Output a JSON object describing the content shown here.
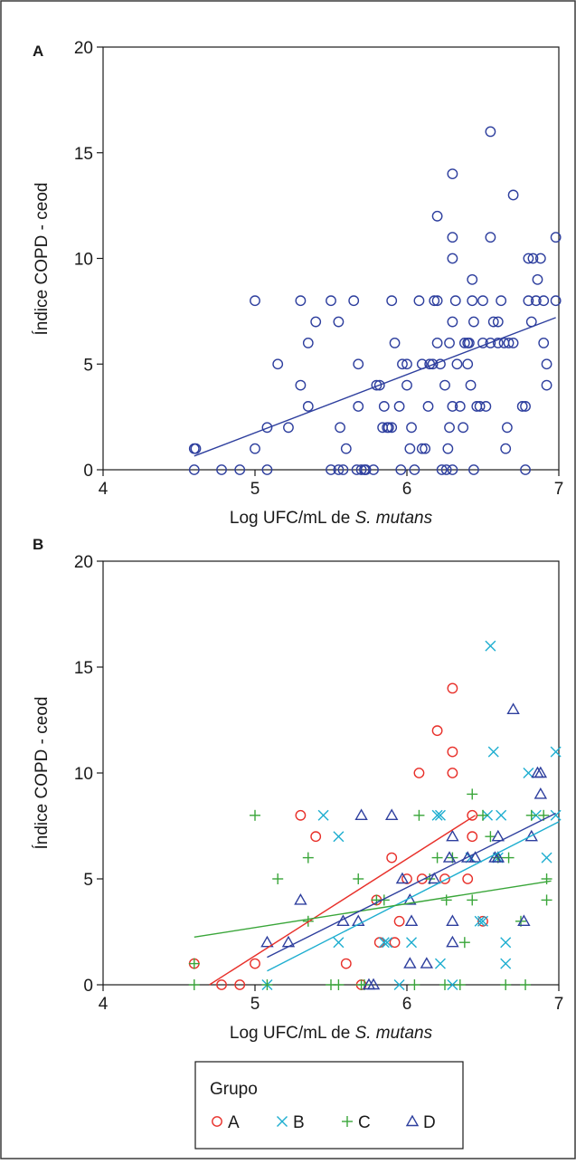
{
  "chart_data": [
    {
      "type": "scatter",
      "panel": "A",
      "xlabel": "Log UFC/mL de",
      "xlabel_italic": "S. mutans",
      "ylabel": "Índice COPD - ceod",
      "xlim": [
        4,
        7
      ],
      "ylim": [
        0,
        20
      ],
      "x_ticks": [
        4,
        5,
        6,
        7
      ],
      "y_ticks": [
        0,
        5,
        10,
        15,
        20
      ],
      "grid": false,
      "marker": "circle",
      "color": "#2e3f9e",
      "points": [
        [
          4.6,
          0
        ],
        [
          4.6,
          1
        ],
        [
          4.61,
          1
        ],
        [
          4.78,
          0
        ],
        [
          4.9,
          0
        ],
        [
          5.0,
          8
        ],
        [
          5.0,
          1
        ],
        [
          5.08,
          0
        ],
        [
          5.08,
          2
        ],
        [
          5.15,
          5
        ],
        [
          5.22,
          2
        ],
        [
          5.3,
          8
        ],
        [
          5.3,
          4
        ],
        [
          5.35,
          6
        ],
        [
          5.35,
          3
        ],
        [
          5.4,
          7
        ],
        [
          5.5,
          0
        ],
        [
          5.5,
          8
        ],
        [
          5.55,
          7
        ],
        [
          5.55,
          0
        ],
        [
          5.56,
          2
        ],
        [
          5.58,
          0
        ],
        [
          5.6,
          1
        ],
        [
          5.65,
          8
        ],
        [
          5.67,
          0
        ],
        [
          5.68,
          5
        ],
        [
          5.68,
          3
        ],
        [
          5.7,
          0
        ],
        [
          5.72,
          0
        ],
        [
          5.73,
          0
        ],
        [
          5.78,
          0
        ],
        [
          5.8,
          4
        ],
        [
          5.82,
          4
        ],
        [
          5.84,
          2
        ],
        [
          5.85,
          3
        ],
        [
          5.87,
          2
        ],
        [
          5.9,
          2
        ],
        [
          5.9,
          8
        ],
        [
          5.92,
          6
        ],
        [
          5.88,
          2
        ],
        [
          5.95,
          3
        ],
        [
          5.96,
          0
        ],
        [
          5.97,
          5
        ],
        [
          6.0,
          5
        ],
        [
          6.0,
          4
        ],
        [
          6.02,
          1
        ],
        [
          6.03,
          2
        ],
        [
          6.05,
          0
        ],
        [
          6.08,
          8
        ],
        [
          6.1,
          5
        ],
        [
          6.1,
          1
        ],
        [
          6.12,
          1
        ],
        [
          6.14,
          3
        ],
        [
          6.15,
          5
        ],
        [
          6.17,
          5
        ],
        [
          6.18,
          8
        ],
        [
          6.2,
          12
        ],
        [
          6.2,
          6
        ],
        [
          6.2,
          8
        ],
        [
          6.22,
          5
        ],
        [
          6.23,
          0
        ],
        [
          6.25,
          4
        ],
        [
          6.26,
          0
        ],
        [
          6.27,
          1
        ],
        [
          6.28,
          2
        ],
        [
          6.28,
          6
        ],
        [
          6.3,
          10
        ],
        [
          6.3,
          14
        ],
        [
          6.3,
          11
        ],
        [
          6.3,
          7
        ],
        [
          6.3,
          3
        ],
        [
          6.3,
          0
        ],
        [
          6.32,
          8
        ],
        [
          6.33,
          5
        ],
        [
          6.35,
          3
        ],
        [
          6.37,
          2
        ],
        [
          6.38,
          6
        ],
        [
          6.4,
          6
        ],
        [
          6.4,
          5
        ],
        [
          6.41,
          6
        ],
        [
          6.42,
          4
        ],
        [
          6.43,
          9
        ],
        [
          6.43,
          8
        ],
        [
          6.44,
          7
        ],
        [
          6.44,
          0
        ],
        [
          6.46,
          3
        ],
        [
          6.48,
          3
        ],
        [
          6.5,
          6
        ],
        [
          6.5,
          8
        ],
        [
          6.52,
          3
        ],
        [
          6.55,
          16
        ],
        [
          6.55,
          11
        ],
        [
          6.55,
          6
        ],
        [
          6.57,
          7
        ],
        [
          6.6,
          7
        ],
        [
          6.6,
          6
        ],
        [
          6.62,
          8
        ],
        [
          6.64,
          6
        ],
        [
          6.65,
          1
        ],
        [
          6.66,
          2
        ],
        [
          6.67,
          6
        ],
        [
          6.7,
          13
        ],
        [
          6.7,
          6
        ],
        [
          6.76,
          3
        ],
        [
          6.78,
          3
        ],
        [
          6.78,
          0
        ],
        [
          6.8,
          10
        ],
        [
          6.8,
          8
        ],
        [
          6.82,
          7
        ],
        [
          6.83,
          10
        ],
        [
          6.85,
          8
        ],
        [
          6.86,
          9
        ],
        [
          6.88,
          10
        ],
        [
          6.9,
          8
        ],
        [
          6.9,
          6
        ],
        [
          6.92,
          4
        ],
        [
          6.92,
          5
        ],
        [
          6.98,
          11
        ],
        [
          6.98,
          8
        ]
      ],
      "fit_line": {
        "x": [
          4.6,
          6.98
        ],
        "y": [
          0.65,
          7.2
        ]
      }
    },
    {
      "type": "scatter",
      "panel": "B",
      "xlabel": "Log UFC/mL de",
      "xlabel_italic": "S. mutans",
      "ylabel": "Índice COPD - ceod",
      "xlim": [
        4,
        7
      ],
      "ylim": [
        0,
        20
      ],
      "x_ticks": [
        4,
        5,
        6,
        7
      ],
      "y_ticks": [
        0,
        5,
        10,
        15,
        20
      ],
      "grid": false,
      "legend": {
        "title": "Grupo",
        "placement": "bottom"
      },
      "series": [
        {
          "name": "A",
          "marker": "circle",
          "color": "#e8302a",
          "points": [
            [
              4.6,
              1
            ],
            [
              4.78,
              0
            ],
            [
              4.9,
              0
            ],
            [
              5.0,
              1
            ],
            [
              5.3,
              8
            ],
            [
              5.4,
              7
            ],
            [
              5.6,
              1
            ],
            [
              5.7,
              0
            ],
            [
              5.8,
              4
            ],
            [
              5.82,
              2
            ],
            [
              5.9,
              6
            ],
            [
              5.95,
              3
            ],
            [
              5.92,
              2
            ],
            [
              6.0,
              5
            ],
            [
              6.08,
              10
            ],
            [
              6.1,
              5
            ],
            [
              6.2,
              12
            ],
            [
              6.25,
              5
            ],
            [
              6.3,
              14
            ],
            [
              6.3,
              11
            ],
            [
              6.3,
              10
            ],
            [
              6.4,
              5
            ],
            [
              6.43,
              8
            ],
            [
              6.43,
              7
            ],
            [
              6.5,
              3
            ]
          ],
          "fit_line": {
            "x": [
              4.7,
              6.45
            ],
            "y": [
              0,
              8.0
            ]
          }
        },
        {
          "name": "B",
          "marker": "x",
          "color": "#1eaed0",
          "points": [
            [
              5.08,
              0
            ],
            [
              5.45,
              8
            ],
            [
              5.55,
              7
            ],
            [
              5.55,
              2
            ],
            [
              5.85,
              2
            ],
            [
              5.87,
              2
            ],
            [
              5.95,
              0
            ],
            [
              6.03,
              2
            ],
            [
              6.2,
              8
            ],
            [
              6.22,
              8
            ],
            [
              6.22,
              1
            ],
            [
              6.3,
              0
            ],
            [
              6.42,
              6
            ],
            [
              6.48,
              3
            ],
            [
              6.5,
              3
            ],
            [
              6.53,
              8
            ],
            [
              6.55,
              16
            ],
            [
              6.57,
              11
            ],
            [
              6.6,
              6
            ],
            [
              6.62,
              8
            ],
            [
              6.65,
              1
            ],
            [
              6.65,
              2
            ],
            [
              6.8,
              10
            ],
            [
              6.85,
              8
            ],
            [
              6.92,
              6
            ],
            [
              6.98,
              8
            ],
            [
              6.98,
              11
            ]
          ],
          "fit_line": {
            "x": [
              5.08,
              7.0
            ],
            "y": [
              0.65,
              7.7
            ]
          }
        },
        {
          "name": "C",
          "marker": "plus",
          "color": "#3aa63a",
          "points": [
            [
              4.6,
              0
            ],
            [
              4.6,
              1
            ],
            [
              5.0,
              8
            ],
            [
              5.08,
              0
            ],
            [
              5.15,
              5
            ],
            [
              5.35,
              6
            ],
            [
              5.35,
              3
            ],
            [
              5.5,
              0
            ],
            [
              5.55,
              0
            ],
            [
              5.68,
              5
            ],
            [
              5.7,
              0
            ],
            [
              5.72,
              0
            ],
            [
              5.8,
              4
            ],
            [
              5.85,
              4
            ],
            [
              6.05,
              0
            ],
            [
              6.08,
              8
            ],
            [
              6.15,
              5
            ],
            [
              6.2,
              6
            ],
            [
              6.25,
              0
            ],
            [
              6.26,
              4
            ],
            [
              6.3,
              6
            ],
            [
              6.35,
              0
            ],
            [
              6.38,
              2
            ],
            [
              6.43,
              9
            ],
            [
              6.43,
              4
            ],
            [
              6.5,
              8
            ],
            [
              6.55,
              7
            ],
            [
              6.6,
              6
            ],
            [
              6.65,
              0
            ],
            [
              6.67,
              6
            ],
            [
              6.75,
              3
            ],
            [
              6.78,
              0
            ],
            [
              6.82,
              8
            ],
            [
              6.9,
              8
            ],
            [
              6.92,
              5
            ],
            [
              6.92,
              4
            ]
          ],
          "fit_line": {
            "x": [
              4.6,
              6.95
            ],
            "y": [
              2.25,
              4.9
            ]
          }
        },
        {
          "name": "D",
          "marker": "triangle",
          "color": "#2e3f9e",
          "points": [
            [
              5.08,
              2
            ],
            [
              5.22,
              2
            ],
            [
              5.3,
              4
            ],
            [
              5.58,
              3
            ],
            [
              5.68,
              3
            ],
            [
              5.7,
              8
            ],
            [
              5.75,
              0
            ],
            [
              5.78,
              0
            ],
            [
              5.9,
              8
            ],
            [
              5.97,
              5
            ],
            [
              6.02,
              4
            ],
            [
              6.03,
              3
            ],
            [
              6.02,
              1
            ],
            [
              6.13,
              1
            ],
            [
              6.18,
              5
            ],
            [
              6.28,
              6
            ],
            [
              6.3,
              7
            ],
            [
              6.3,
              3
            ],
            [
              6.3,
              2
            ],
            [
              6.4,
              6
            ],
            [
              6.45,
              6
            ],
            [
              6.58,
              6
            ],
            [
              6.6,
              7
            ],
            [
              6.6,
              6
            ],
            [
              6.7,
              13
            ],
            [
              6.77,
              3
            ],
            [
              6.82,
              7
            ],
            [
              6.86,
              10
            ],
            [
              6.88,
              10
            ],
            [
              6.88,
              9
            ]
          ],
          "fit_line": {
            "x": [
              5.08,
              6.98
            ],
            "y": [
              1.3,
              8.1
            ]
          }
        }
      ]
    }
  ],
  "panel_a": {
    "letter": "A",
    "ylabel": "Índice COPD - ceod",
    "xlabel_main": "Log UFC/mL de ",
    "xlabel_species": "S. mutans"
  },
  "panel_b": {
    "letter": "B",
    "ylabel": "Índice COPD - ceod",
    "xlabel_main": "Log UFC/mL de ",
    "xlabel_species": "S. mutans"
  },
  "legend": {
    "title": "Grupo",
    "items": [
      {
        "label": "A",
        "icon": "circle-icon",
        "color": "#e8302a"
      },
      {
        "label": "B",
        "icon": "x-icon",
        "color": "#1eaed0"
      },
      {
        "label": "C",
        "icon": "plus-icon",
        "color": "#3aa63a"
      },
      {
        "label": "D",
        "icon": "triangle-icon",
        "color": "#2e3f9e"
      }
    ]
  }
}
